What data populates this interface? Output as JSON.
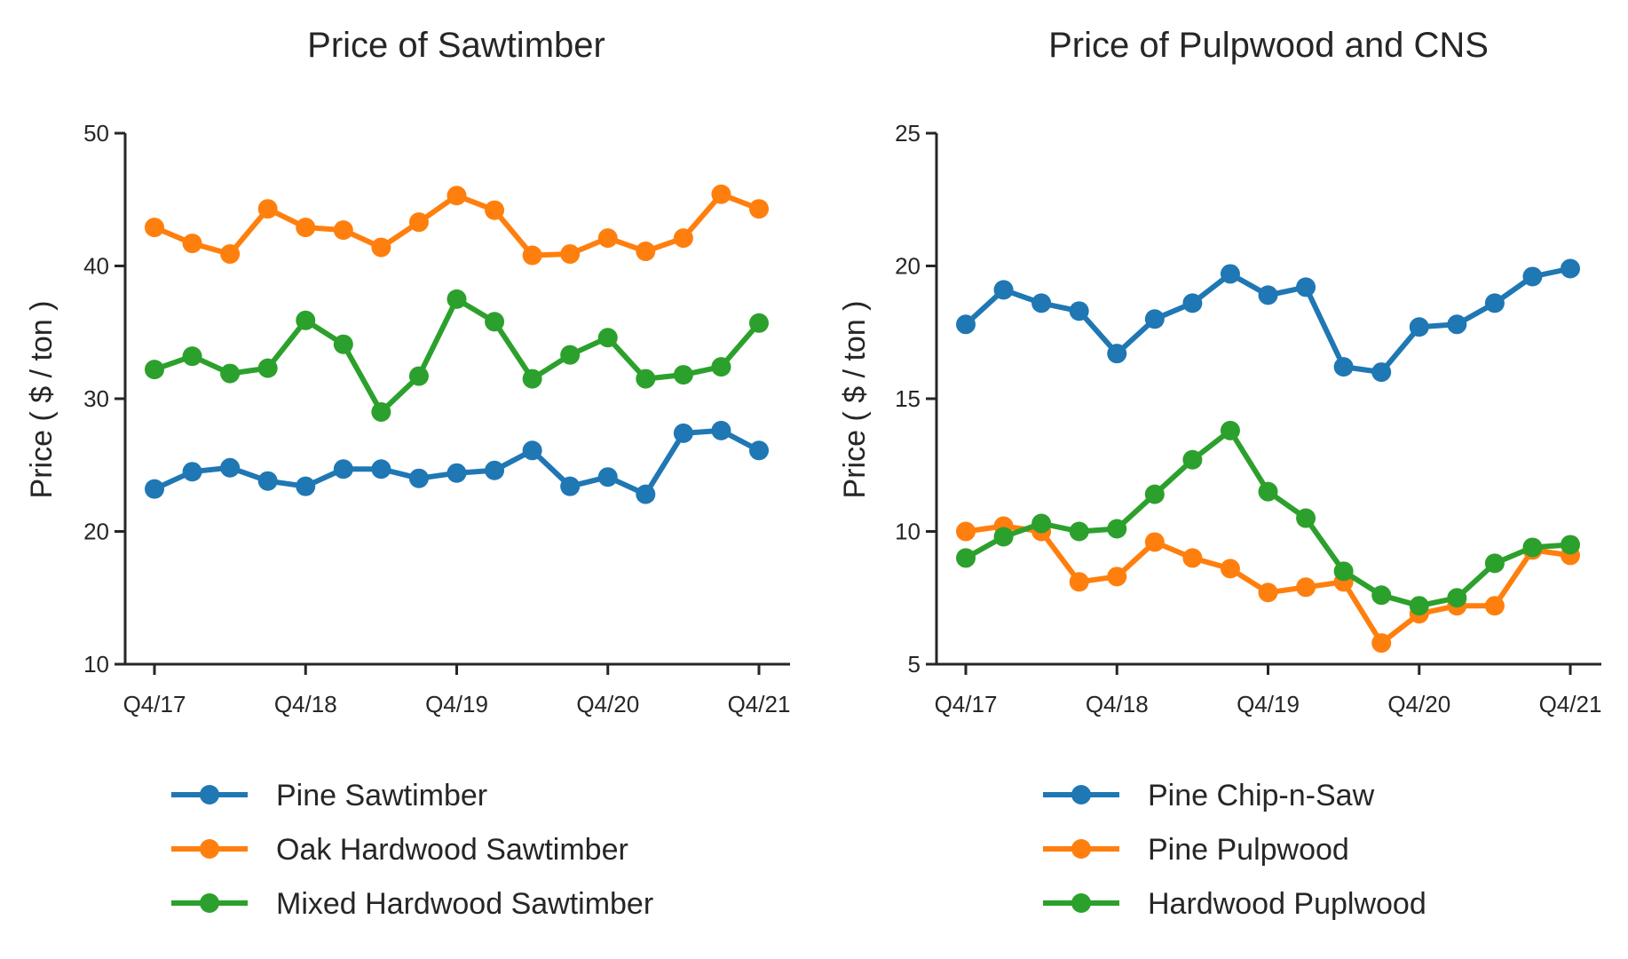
{
  "colors": {
    "blue": "#1f77b4",
    "orange": "#ff7f0e",
    "green": "#2ca02c",
    "axis": "#262626"
  },
  "chart_data": [
    {
      "type": "line",
      "title": "Price of Sawtimber",
      "xlabel": "",
      "ylabel": "Price ( $ / ton )",
      "ylim": [
        10,
        50
      ],
      "yticks": [
        10,
        20,
        30,
        40,
        50
      ],
      "x": [
        "Q4/17",
        "Q1/18",
        "Q2/18",
        "Q3/18",
        "Q4/18",
        "Q1/19",
        "Q2/19",
        "Q3/19",
        "Q4/19",
        "Q1/20",
        "Q2/20",
        "Q3/20",
        "Q4/20",
        "Q1/21",
        "Q2/21",
        "Q3/21",
        "Q4/21"
      ],
      "xticks": [
        "Q4/17",
        "Q4/18",
        "Q4/19",
        "Q4/20",
        "Q4/21"
      ],
      "legend_position": "bottom",
      "grid": false,
      "series": [
        {
          "name": "Pine Sawtimber",
          "color": "#1f77b4",
          "values": [
            23.2,
            24.5,
            24.8,
            23.8,
            23.4,
            24.7,
            24.7,
            24.0,
            24.4,
            24.6,
            26.1,
            23.4,
            24.1,
            22.8,
            27.4,
            27.6,
            26.1
          ]
        },
        {
          "name": "Oak Hardwood Sawtimber",
          "color": "#ff7f0e",
          "values": [
            42.9,
            41.7,
            40.9,
            44.3,
            42.9,
            42.7,
            41.4,
            43.3,
            45.3,
            44.2,
            40.8,
            40.9,
            42.1,
            41.1,
            42.1,
            45.4,
            44.3
          ]
        },
        {
          "name": "Mixed Hardwood Sawtimber",
          "color": "#2ca02c",
          "values": [
            32.2,
            33.2,
            31.9,
            32.3,
            35.9,
            34.1,
            29.0,
            31.7,
            37.5,
            35.8,
            31.5,
            33.3,
            34.6,
            31.5,
            31.8,
            32.4,
            35.7
          ]
        }
      ]
    },
    {
      "type": "line",
      "title": "Price of Pulpwood and CNS",
      "xlabel": "",
      "ylabel": "Price ( $ / ton )",
      "ylim": [
        5,
        25
      ],
      "yticks": [
        5,
        10,
        15,
        20,
        25
      ],
      "x": [
        "Q4/17",
        "Q1/18",
        "Q2/18",
        "Q3/18",
        "Q4/18",
        "Q1/19",
        "Q2/19",
        "Q3/19",
        "Q4/19",
        "Q1/20",
        "Q2/20",
        "Q3/20",
        "Q4/20",
        "Q1/21",
        "Q2/21",
        "Q3/21",
        "Q4/21"
      ],
      "xticks": [
        "Q4/17",
        "Q4/18",
        "Q4/19",
        "Q4/20",
        "Q4/21"
      ],
      "legend_position": "bottom",
      "grid": false,
      "series": [
        {
          "name": "Pine Chip-n-Saw",
          "color": "#1f77b4",
          "values": [
            17.8,
            19.1,
            18.6,
            18.3,
            16.7,
            18.0,
            18.6,
            19.7,
            18.9,
            19.2,
            16.2,
            16.0,
            17.7,
            17.8,
            18.6,
            19.6,
            19.9
          ]
        },
        {
          "name": "Pine Pulpwood",
          "color": "#ff7f0e",
          "values": [
            10.0,
            10.2,
            10.0,
            8.1,
            8.3,
            9.6,
            9.0,
            8.6,
            7.7,
            7.9,
            8.1,
            5.8,
            6.9,
            7.2,
            7.2,
            9.3,
            9.1
          ]
        },
        {
          "name": "Hardwood Puplwood",
          "color": "#2ca02c",
          "values": [
            9.0,
            9.8,
            10.3,
            10.0,
            10.1,
            11.4,
            12.7,
            13.8,
            11.5,
            10.5,
            8.5,
            7.6,
            7.2,
            7.5,
            8.8,
            9.4,
            9.5
          ]
        }
      ]
    }
  ]
}
